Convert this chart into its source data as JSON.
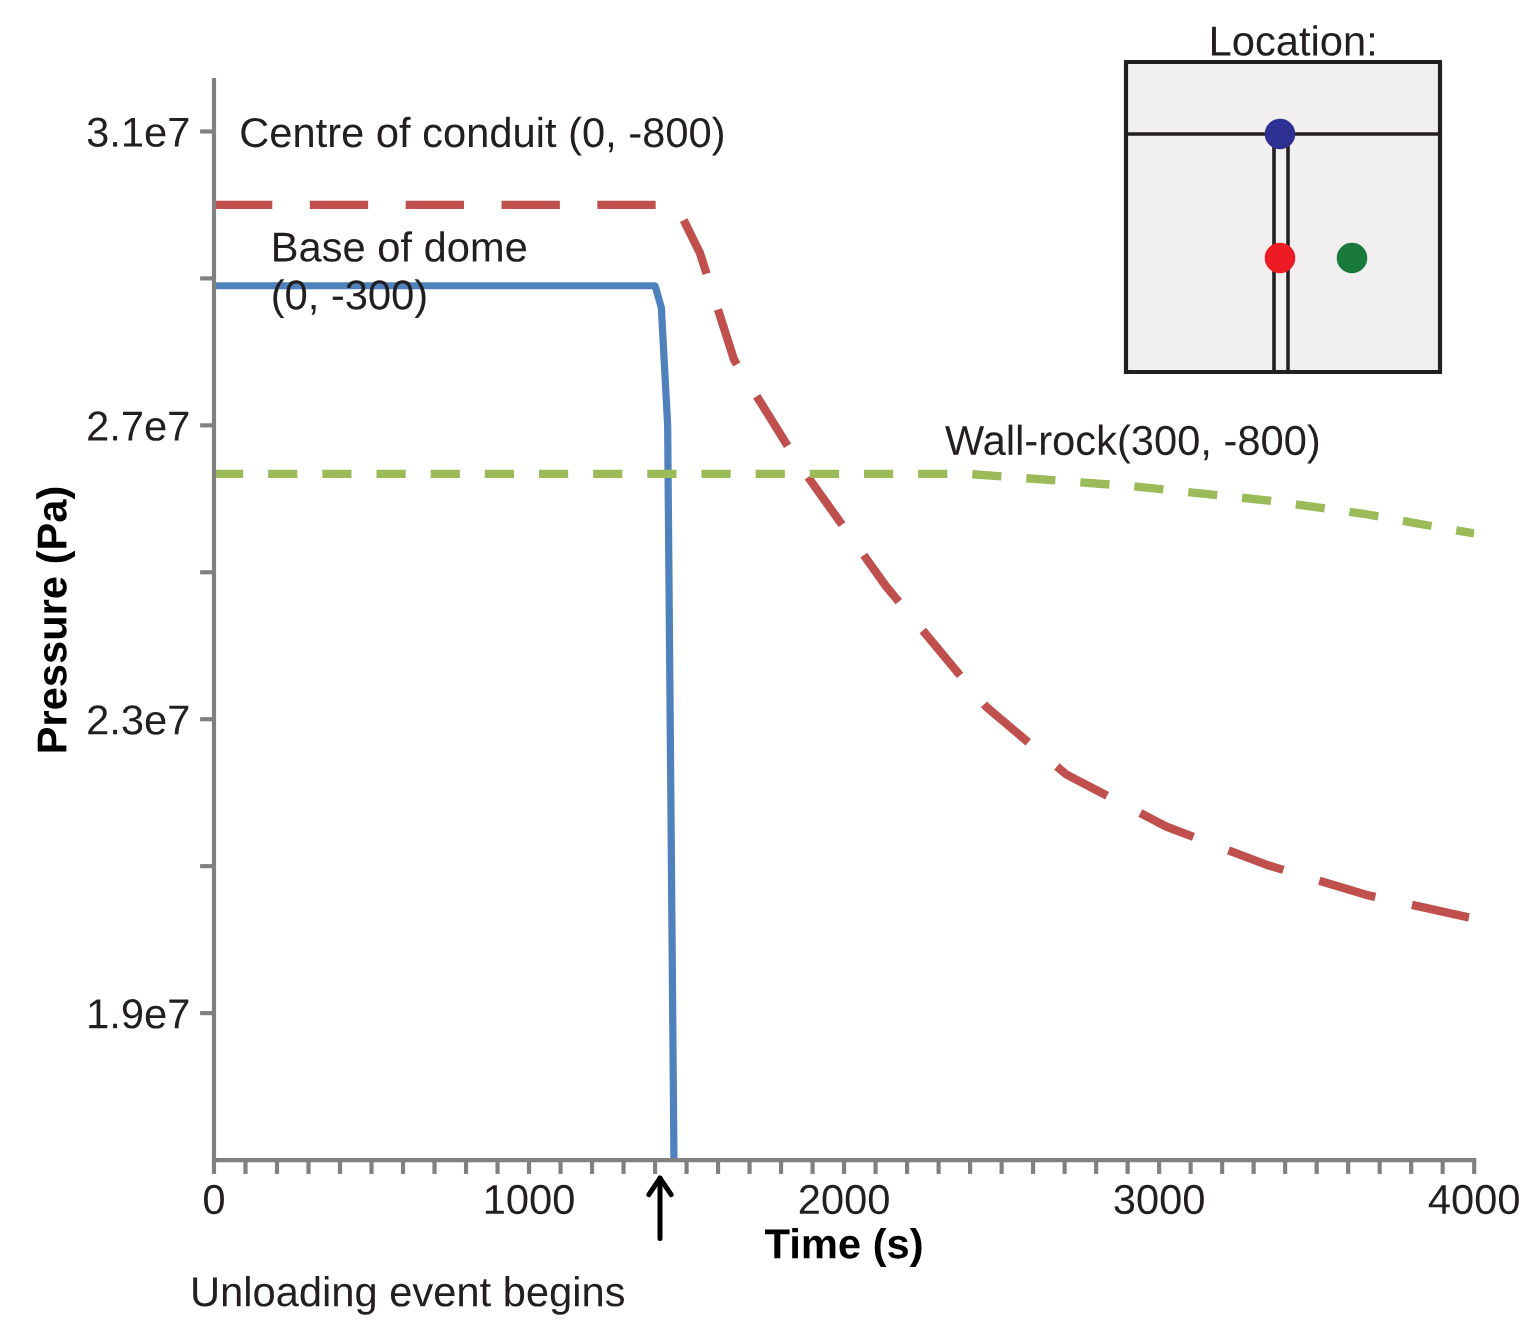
{
  "chart_data": {
    "type": "line",
    "xlabel": "Time (s)",
    "ylabel": "Pressure (Pa)",
    "xlim": [
      0,
      4000
    ],
    "ylim": [
      17000000,
      31700000
    ],
    "xticks": [
      0,
      {
        "value": 100,
        "label": null
      },
      {
        "value": 200,
        "label": null
      },
      {
        "value": 300,
        "label": null
      },
      {
        "value": 400,
        "label": null
      },
      {
        "value": 500,
        "label": null
      },
      {
        "value": 600,
        "label": null
      },
      {
        "value": 700,
        "label": null
      },
      {
        "value": 800,
        "label": null
      },
      {
        "value": 900,
        "label": null
      },
      1000,
      {
        "value": 1100,
        "label": null
      },
      {
        "value": 1200,
        "label": null
      },
      {
        "value": 1300,
        "label": null
      },
      {
        "value": 1400,
        "label": null
      },
      {
        "value": 1500,
        "label": null
      },
      {
        "value": 1600,
        "label": null
      },
      {
        "value": 1700,
        "label": null
      },
      {
        "value": 1800,
        "label": null
      },
      {
        "value": 1900,
        "label": null
      },
      2000,
      {
        "value": 2100,
        "label": null
      },
      {
        "value": 2200,
        "label": null
      },
      {
        "value": 2300,
        "label": null
      },
      {
        "value": 2400,
        "label": null
      },
      {
        "value": 2500,
        "label": null
      },
      {
        "value": 2600,
        "label": null
      },
      {
        "value": 2700,
        "label": null
      },
      {
        "value": 2800,
        "label": null
      },
      {
        "value": 2900,
        "label": null
      },
      3000,
      {
        "value": 3100,
        "label": null
      },
      {
        "value": 3200,
        "label": null
      },
      {
        "value": 3300,
        "label": null
      },
      {
        "value": 3400,
        "label": null
      },
      {
        "value": 3500,
        "label": null
      },
      {
        "value": 3600,
        "label": null
      },
      {
        "value": 3700,
        "label": null
      },
      {
        "value": 3800,
        "label": null
      },
      {
        "value": 3900,
        "label": null
      },
      4000
    ],
    "yticks": [
      {
        "value": 19000000,
        "label": "1.9e7"
      },
      {
        "value": 21000000,
        "label": null
      },
      {
        "value": 23000000,
        "label": "2.3e7"
      },
      {
        "value": 25000000,
        "label": null
      },
      {
        "value": 27000000,
        "label": "2.7e7"
      },
      {
        "value": 29000000,
        "label": null
      },
      {
        "value": 31000000,
        "label": "3.1e7"
      }
    ],
    "grid": false,
    "legend": false,
    "marker": "none",
    "series": [
      {
        "name": "Centre of conduit (0, -800)",
        "color": "#c0504d",
        "line_style": "dashed",
        "x": [
          0,
          1467,
          1543,
          1651,
          1860,
          2133,
          2451,
          2705,
          3022,
          3340,
          3657,
          3975,
          4000
        ],
        "values": [
          30000000,
          30000000,
          29340000,
          27890000,
          26450000,
          24810000,
          23170000,
          22250000,
          21540000,
          21020000,
          20610000,
          20310000,
          20290000
        ]
      },
      {
        "name": "Base of dome\n(0, -300)",
        "color": "#4f81bd",
        "line_style": "solid",
        "x": [
          0,
          1400,
          1420,
          1440,
          1460
        ],
        "values": [
          28900000,
          28900000,
          28600000,
          27000000,
          17000000
        ]
      },
      {
        "name": "Wall-rock(300, -800)",
        "color": "#9bbb59",
        "line_style": "dashed",
        "x": [
          0,
          2390,
          2921,
          3340,
          3657,
          3943,
          4000
        ],
        "values": [
          26340000,
          26340000,
          26170000,
          25980000,
          25790000,
          25570000,
          25530000
        ]
      }
    ],
    "annotations": [
      "Unloading event begins",
      "Location:"
    ]
  }
}
